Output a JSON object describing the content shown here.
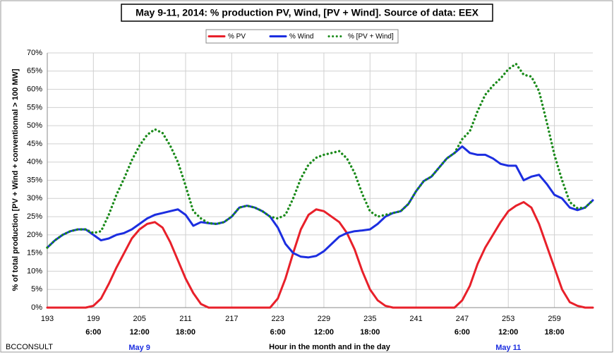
{
  "chart_data": {
    "type": "line",
    "title": "May 9-11, 2014: % production PV, Wind, [PV + Wind]. Source of data: EEX",
    "x_label": "Hour in the month and in the day",
    "y_label": "% of total production [PV + Wind + conventionnal > 100 MW]",
    "source": "BCCONSULT",
    "x": [
      193,
      194,
      195,
      196,
      197,
      198,
      199,
      200,
      201,
      202,
      203,
      204,
      205,
      206,
      207,
      208,
      209,
      210,
      211,
      212,
      213,
      214,
      215,
      216,
      217,
      218,
      219,
      220,
      221,
      222,
      223,
      224,
      225,
      226,
      227,
      228,
      229,
      230,
      231,
      232,
      233,
      234,
      235,
      236,
      237,
      238,
      239,
      240,
      241,
      242,
      243,
      244,
      245,
      246,
      247,
      248,
      249,
      250,
      251,
      252,
      253,
      254,
      255,
      256,
      257,
      258,
      259,
      260,
      261,
      262,
      263,
      264
    ],
    "series": [
      {
        "name": "% PV",
        "color": "#e8202a",
        "dashed": false,
        "values": [
          0,
          0,
          0,
          0,
          0,
          0,
          0.5,
          2.5,
          6.5,
          11,
          15,
          19,
          21.5,
          23,
          23.5,
          22,
          18,
          13,
          8,
          4,
          1,
          0,
          0,
          0,
          0,
          0,
          0,
          0,
          0,
          0,
          2.5,
          8,
          15,
          21.5,
          25.5,
          27,
          26.5,
          25,
          23.5,
          20.5,
          16,
          10,
          5,
          2,
          0.5,
          0,
          0,
          0,
          0,
          0,
          0,
          0,
          0,
          0,
          2,
          6,
          12,
          16.5,
          20,
          23.5,
          26.5,
          28,
          29,
          27.5,
          23,
          17,
          11,
          5,
          1.5,
          0.5,
          0,
          0
        ]
      },
      {
        "name": "% Wind",
        "color": "#1c2ee0",
        "dashed": false,
        "values": [
          16.5,
          18.5,
          20,
          21,
          21.5,
          21.5,
          20,
          18.5,
          19,
          20,
          20.5,
          21.5,
          23,
          24.5,
          25.5,
          26,
          26.5,
          27,
          25.5,
          22.5,
          23.5,
          23.2,
          23,
          23.5,
          25,
          27.5,
          28,
          27.5,
          26.5,
          25,
          22,
          17.5,
          15,
          14,
          13.8,
          14.2,
          15.5,
          17.5,
          19.5,
          20.5,
          21,
          21.2,
          21.5,
          23,
          25,
          26,
          26.5,
          28.5,
          32,
          34.8,
          36,
          38.5,
          41,
          42.5,
          44.3,
          42.5,
          42,
          42,
          41,
          39.5,
          39,
          39,
          35,
          36,
          36.5,
          34,
          31,
          30,
          27.5,
          26.8,
          27.5,
          29.5
        ]
      },
      {
        "name": "% [PV + Wind]",
        "color": "#1a8a1a",
        "dashed": true,
        "values": [
          16.5,
          18.5,
          20,
          21,
          21.5,
          21.5,
          20.5,
          21,
          25.5,
          31,
          35.5,
          40.5,
          44.5,
          47.5,
          49,
          48,
          44.5,
          40,
          33.5,
          26.5,
          24.5,
          23.2,
          23,
          23.5,
          25,
          27.5,
          28,
          27.5,
          26.5,
          25,
          24.5,
          25.5,
          30,
          35.5,
          39.3,
          41.2,
          42,
          42.5,
          43,
          41,
          37,
          31.2,
          26.5,
          25,
          25.5,
          26,
          26.5,
          28.5,
          32,
          34.8,
          36,
          38.5,
          41,
          42.5,
          46.3,
          48.5,
          54,
          58.5,
          61,
          63,
          65.5,
          67,
          64,
          63.5,
          59.5,
          51,
          42,
          35,
          29,
          27.3,
          27.5,
          29.5
        ]
      }
    ],
    "xlim": [
      193,
      264
    ],
    "xticks": [
      193,
      199,
      205,
      211,
      217,
      223,
      229,
      235,
      241,
      247,
      253,
      259
    ],
    "ylim": [
      0,
      70
    ],
    "yticks": [
      {
        "value": 0,
        "label": "0%"
      },
      {
        "value": 5,
        "label": "5%"
      },
      {
        "value": 10,
        "label": "10%"
      },
      {
        "value": 15,
        "label": "15%"
      },
      {
        "value": 20,
        "label": "20%"
      },
      {
        "value": 25,
        "label": "25%"
      },
      {
        "value": 30,
        "label": "30%"
      },
      {
        "value": 35,
        "label": "35%"
      },
      {
        "value": 40,
        "label": "40%"
      },
      {
        "value": 45,
        "label": "45%"
      },
      {
        "value": 50,
        "label": "50%"
      },
      {
        "value": 55,
        "label": "55%"
      },
      {
        "value": 60,
        "label": "60%"
      },
      {
        "value": 65,
        "label": "65%"
      },
      {
        "value": 70,
        "label": "70%"
      }
    ],
    "grid": true,
    "legend": "top",
    "time_labels": [
      {
        "text": "6:00",
        "x": 199
      },
      {
        "text": "12:00",
        "x": 205
      },
      {
        "text": "18:00",
        "x": 211
      },
      {
        "text": "6:00",
        "x": 223
      },
      {
        "text": "12:00",
        "x": 229
      },
      {
        "text": "18:00",
        "x": 235
      },
      {
        "text": "6:00",
        "x": 247
      },
      {
        "text": "12:00",
        "x": 253
      },
      {
        "text": "18:00",
        "x": 259
      }
    ],
    "day_labels": [
      {
        "text": "May 9",
        "x": 205
      },
      {
        "text": "May 11",
        "x": 253
      }
    ]
  }
}
